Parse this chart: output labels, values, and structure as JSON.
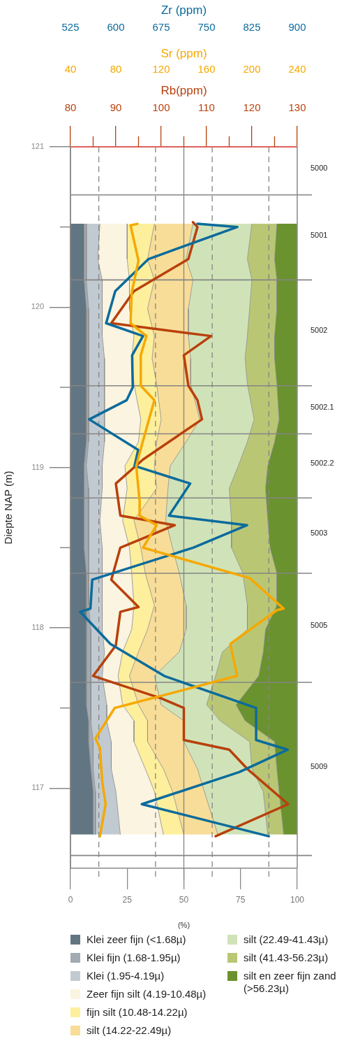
{
  "chart_data": [
    {
      "type": "line",
      "orientation": "horizontal",
      "marker": "none",
      "tick_labels": "x",
      "series": [
        {
          "color": "#0b6b9c",
          "x": [
            120.52,
            120.5,
            120.3,
            120.1,
            119.9,
            119.82,
            119.7,
            119.5,
            119.42,
            119.3,
            119.11,
            119.01,
            118.9,
            118.7,
            118.64,
            118.5,
            118.3,
            118.12,
            118.1,
            117.9,
            117.7,
            117.5,
            117.3,
            117.24,
            117.1,
            116.9,
            116.7
          ],
          "values": [
            735,
            801,
            654,
            599,
            584,
            645,
            627,
            628,
            618,
            556,
            637,
            631,
            723,
            688,
            817,
            728,
            561,
            558,
            541,
            591,
            680,
            832,
            832,
            884,
            804,
            643,
            853
          ]
        }
      ],
      "xlim": [
        525,
        900
      ],
      "xticks": [
        525,
        600,
        675,
        750,
        825,
        900
      ],
      "xlabel": "Zr (ppm)",
      "ylim": [
        116.5,
        121
      ]
    },
    {
      "type": "line",
      "orientation": "horizontal",
      "marker": "none",
      "tick_labels": "x",
      "series": [
        {
          "color": "#f5a800",
          "x": [
            120.52,
            120.51,
            120.29,
            120.09,
            119.9,
            119.82,
            119.7,
            119.51,
            119.42,
            119.09,
            119.01,
            118.79,
            118.7,
            118.64,
            118.5,
            118.31,
            118.12,
            118.11,
            117.9,
            117.7,
            117.5,
            117.31,
            117.25,
            117.04,
            116.9,
            116.7
          ],
          "values": [
            99,
            93,
            100,
            94,
            93,
            107,
            102,
            102,
            114,
            101,
            98,
            101,
            101,
            116,
            104,
            198,
            228,
            222,
            181,
            187,
            79,
            62,
            66,
            68,
            71,
            66
          ]
        }
      ],
      "xlim": [
        40,
        240
      ],
      "xticks": [
        40,
        80,
        120,
        160,
        200,
        240
      ],
      "xlabel": "Sr (ppm)",
      "ylim": [
        116.5,
        121
      ]
    },
    {
      "type": "area",
      "stacked": true,
      "orientation": "horizontal",
      "legend": "bottom",
      "marker": "none",
      "x": [
        120.52,
        120.3,
        120.17,
        119.99,
        119.82,
        119.68,
        119.52,
        119.3,
        119.16,
        119.01,
        118.87,
        118.67,
        118.5,
        118.34,
        118.14,
        117.99,
        117.85,
        117.7,
        117.52,
        117.42,
        117.29,
        117.12,
        116.98,
        116.71
      ],
      "series": [
        {
          "name": "Klei zeer fijn (<1.68µ)",
          "color": "#627582",
          "values": [
            6,
            6,
            6,
            7,
            7,
            7,
            7,
            7,
            7,
            6,
            6,
            6,
            6,
            7,
            7,
            7,
            7,
            7,
            7,
            8,
            8,
            9,
            10,
            10
          ]
        },
        {
          "name": "Klei fijn (1.68-1.95µ)",
          "color": "#a0abb4",
          "values": [
            1,
            1,
            1,
            1,
            1,
            1,
            1,
            1,
            1,
            1,
            2,
            2,
            2,
            1,
            1,
            2,
            2,
            2,
            2,
            1,
            2,
            1,
            1,
            1
          ]
        },
        {
          "name": "Klei  (1.95-4.19µ)",
          "color": "#c2cad1",
          "values": [
            6,
            5,
            7,
            6,
            6,
            7,
            7,
            7,
            7,
            7,
            6,
            5,
            6,
            6,
            6,
            5,
            6,
            5,
            7,
            7,
            8,
            8,
            9,
            11
          ]
        },
        {
          "name": "Zeer fijn silt (4.19-10.48µ)",
          "color": "#faf4e0",
          "values": [
            12,
            13,
            12,
            12,
            14,
            12,
            13,
            16,
            15,
            10,
            11,
            10,
            12,
            13,
            14,
            13,
            8,
            7,
            7,
            12,
            10,
            15,
            17,
            19
          ]
        },
        {
          "name": "fijn silt (10.48-14.22µ)",
          "color": "#fdef9c",
          "values": [
            12,
            9,
            11,
            8,
            9,
            9,
            10,
            9,
            8,
            13,
            13,
            5,
            5,
            6,
            9,
            7,
            7,
            5,
            7,
            6,
            6,
            8,
            8,
            9
          ]
        },
        {
          "name": "silt (14.22-22.49µ)",
          "color": "#f8dd98",
          "values": [
            17,
            17,
            17,
            18,
            15,
            17,
            15,
            17,
            13,
            7,
            5,
            14,
            14,
            15,
            14,
            17,
            18,
            11,
            10,
            16,
            16,
            15,
            14,
            15
          ]
        },
        {
          "name": "silt (22.49-41.43µ)",
          "color": "#d0e3b8",
          "values": [
            26,
            27,
            26,
            27,
            26,
            24,
            25,
            24,
            27,
            30,
            27,
            29,
            26,
            28,
            27,
            27,
            19,
            27,
            20,
            16,
            29,
            24,
            26,
            22
          ]
        },
        {
          "name": "silt (41.43-56.23µ)",
          "color": "#b9c775",
          "values": [
            11,
            12,
            11,
            12,
            12,
            13,
            13,
            11,
            12,
            13,
            16,
            16,
            17,
            15,
            13,
            8,
            18,
            19,
            13,
            11,
            11,
            11,
            7,
            7
          ]
        },
        {
          "name": "silt en zeer fijn zand (>56.23µ)",
          "color": "#6a922e",
          "values": [
            9,
            10,
            9,
            9,
            10,
            10,
            9,
            8,
            10,
            13,
            14,
            13,
            12,
            9,
            9,
            14,
            15,
            17,
            27,
            23,
            10,
            9,
            8,
            6
          ]
        },
        {
          "type": "line",
          "axis": "x2",
          "color": "#b8400c",
          "x": [
            120.53,
            120.5,
            120.3,
            120.1,
            119.9,
            119.82,
            119.7,
            119.51,
            119.42,
            119.3,
            119.05,
            118.9,
            118.7,
            118.64,
            118.5,
            118.3,
            118.13,
            118.1,
            117.89,
            117.7,
            117.56,
            117.5,
            117.3,
            117.24,
            117.12,
            116.9,
            116.7
          ],
          "values": [
            107,
            108,
            106,
            94,
            89,
            111,
            105,
            106,
            108,
            109,
            96,
            90,
            91,
            103,
            91,
            89,
            95,
            91,
            90,
            85,
            100,
            105,
            105,
            115,
            119,
            128,
            112
          ]
        }
      ],
      "xlim": [
        0,
        100
      ],
      "xticks": [
        0,
        25,
        50,
        75,
        100
      ],
      "xlabel": "(%)",
      "x2lim": [
        80,
        130
      ],
      "x2ticks": [
        80,
        {
          "value": 85,
          "label": null
        },
        90,
        {
          "value": 95,
          "label": null
        },
        100,
        {
          "value": 105,
          "label": null
        },
        110,
        {
          "value": 115,
          "label": null
        },
        120,
        {
          "value": 125,
          "label": null
        },
        130
      ],
      "x2label": "Rb(ppm)",
      "ylim": [
        116.5,
        121
      ],
      "yticks": [
        117,
        {
          "value": 117.5,
          "label": null
        },
        118,
        {
          "value": 118.5,
          "label": null
        },
        119,
        {
          "value": 119.5,
          "label": null
        },
        120,
        {
          "value": 120.5,
          "label": null
        },
        121
      ],
      "ylabel": "Diepte NAP (m)",
      "ref_lines": [
        {
          "axis": "x",
          "value": 12.5,
          "line_style": "dashed"
        },
        {
          "axis": "x",
          "value": 37.5,
          "line_style": "dashed"
        },
        {
          "axis": "x",
          "value": 50,
          "line_style": "solid"
        },
        {
          "axis": "x",
          "value": 62.5,
          "line_style": "dashed"
        },
        {
          "axis": "x",
          "value": 87.5,
          "line_style": "dashed"
        },
        {
          "axis": "y",
          "value": 120.7
        },
        {
          "axis": "y",
          "value": 120.17
        },
        {
          "axis": "y",
          "value": 119.51
        },
        {
          "axis": "y",
          "value": 119.21
        },
        {
          "axis": "y",
          "value": 118.81
        },
        {
          "axis": "y",
          "value": 118.34
        },
        {
          "axis": "y",
          "value": 117.66
        },
        {
          "axis": "y",
          "value": 116.58
        }
      ],
      "annotations": [
        "5000",
        "5001",
        "5002",
        "5002.1",
        "5002.2",
        "5003",
        "5005",
        "5009"
      ]
    }
  ]
}
